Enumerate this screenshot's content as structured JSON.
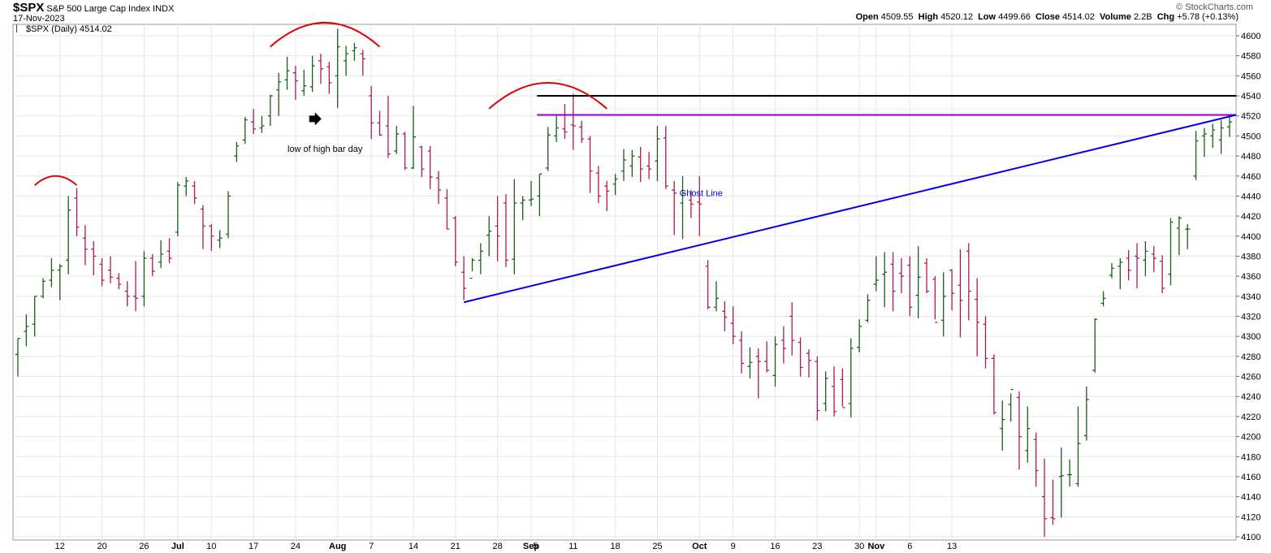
{
  "header": {
    "symbol": "$SPX",
    "name": "S&P 500 Large Cap Index",
    "exchange": "INDX",
    "date": "17-Nov-2023",
    "credit": "© StockCharts.com",
    "legend": "$SPX (Daily) 4514.02",
    "open_label": "Open",
    "open": "4509.55",
    "high_label": "High",
    "high": "4520.12",
    "low_label": "Low",
    "low": "4499.66",
    "close_label": "Close",
    "close": "4514.02",
    "volume_label": "Volume",
    "volume": "2.2B",
    "chg_label": "Chg",
    "chg": "+5.78 (+0.13%)"
  },
  "colors": {
    "up": "#1a5e1a",
    "down": "#b01a4a",
    "trend": "#0000ee",
    "arc": "#e00000",
    "black_line": "#000000",
    "purple_line": "#9900cc",
    "grid": "#e6e6e6"
  },
  "chart_data": {
    "type": "ohlc",
    "title": "$SPX (Daily) 4514.02",
    "ylim": [
      4095,
      4610
    ],
    "yticks": [
      4100,
      4120,
      4140,
      4160,
      4180,
      4200,
      4220,
      4240,
      4260,
      4280,
      4300,
      4320,
      4340,
      4360,
      4380,
      4400,
      4420,
      4440,
      4460,
      4480,
      4500,
      4520,
      4540,
      4560,
      4580,
      4600
    ],
    "x_tick_labels": [
      {
        "i": 5,
        "label": "12"
      },
      {
        "i": 10,
        "label": "20"
      },
      {
        "i": 15,
        "label": "26"
      },
      {
        "i": 19,
        "label": "Jul"
      },
      {
        "i": 23,
        "label": "10"
      },
      {
        "i": 28,
        "label": "17"
      },
      {
        "i": 33,
        "label": "24"
      },
      {
        "i": 38,
        "label": "Aug"
      },
      {
        "i": 42,
        "label": "7"
      },
      {
        "i": 47,
        "label": "14"
      },
      {
        "i": 52,
        "label": "21"
      },
      {
        "i": 57,
        "label": "28"
      },
      {
        "i": 61,
        "label": "Sep"
      },
      {
        "i": 61.5,
        "label": "5"
      },
      {
        "i": 66,
        "label": "11"
      },
      {
        "i": 71,
        "label": "18"
      },
      {
        "i": 76,
        "label": "25"
      },
      {
        "i": 81,
        "label": "Oct"
      },
      {
        "i": 85,
        "label": "9"
      },
      {
        "i": 90,
        "label": "16"
      },
      {
        "i": 95,
        "label": "23"
      },
      {
        "i": 100,
        "label": "30"
      },
      {
        "i": 102,
        "label": "Nov"
      },
      {
        "i": 106,
        "label": "6"
      },
      {
        "i": 111,
        "label": "13"
      }
    ],
    "bars": [
      [
        4282,
        4298,
        4260,
        4298
      ],
      [
        4305,
        4322,
        4290,
        4310
      ],
      [
        4312,
        4340,
        4300,
        4340
      ],
      [
        4340,
        4358,
        4338,
        4355
      ],
      [
        4356,
        4378,
        4349,
        4366
      ],
      [
        4366,
        4372,
        4336,
        4370
      ],
      [
        4376,
        4440,
        4362,
        4426
      ],
      [
        4438,
        4448,
        4400,
        4409
      ],
      [
        4398,
        4411,
        4371,
        4387
      ],
      [
        4387,
        4395,
        4361,
        4380
      ],
      [
        4372,
        4378,
        4350,
        4356
      ],
      [
        4366,
        4380,
        4353,
        4359
      ],
      [
        4358,
        4363,
        4347,
        4352
      ],
      [
        4345,
        4355,
        4330,
        4340
      ],
      [
        4340,
        4375,
        4325,
        4338
      ],
      [
        4340,
        4385,
        4330,
        4378
      ],
      [
        4378,
        4382,
        4360,
        4365
      ],
      [
        4374,
        4396,
        4368,
        4382
      ],
      [
        4385,
        4398,
        4373,
        4378
      ],
      [
        4404,
        4454,
        4400,
        4451
      ],
      [
        4450,
        4459,
        4440,
        4455
      ],
      [
        4450,
        4455,
        4432,
        4438
      ],
      [
        4427,
        4431,
        4387,
        4410
      ],
      [
        4410,
        4412,
        4385,
        4400
      ],
      [
        4396,
        4406,
        4388,
        4398
      ],
      [
        4402,
        4445,
        4398,
        4440
      ],
      [
        4480,
        4494,
        4474,
        4490
      ],
      [
        4496,
        4519,
        4492,
        4516
      ],
      [
        4514,
        4527,
        4502,
        4507
      ],
      [
        4508,
        4520,
        4503,
        4510
      ],
      [
        4520,
        4541,
        4510,
        4540
      ],
      [
        4546,
        4563,
        4520,
        4554
      ],
      [
        4556,
        4579,
        4546,
        4565
      ],
      [
        4563,
        4570,
        4536,
        4555
      ],
      [
        4545,
        4566,
        4540,
        4550
      ],
      [
        4549,
        4580,
        4544,
        4570
      ],
      [
        4575,
        4582,
        4552,
        4567
      ],
      [
        4569,
        4574,
        4542,
        4553
      ],
      [
        4560,
        4607,
        4528,
        4589
      ],
      [
        4575,
        4590,
        4560,
        4582
      ],
      [
        4585,
        4593,
        4575,
        4588
      ],
      [
        4582,
        4586,
        4560,
        4577
      ],
      [
        4540,
        4550,
        4497,
        4513
      ],
      [
        4513,
        4525,
        4500,
        4501
      ],
      [
        4510,
        4540,
        4478,
        4482
      ],
      [
        4485,
        4510,
        4482,
        4502
      ],
      [
        4502,
        4504,
        4466,
        4468
      ],
      [
        4468,
        4530,
        4467,
        4499
      ],
      [
        4489,
        4490,
        4459,
        4467
      ],
      [
        4485,
        4490,
        4447,
        4459
      ],
      [
        4458,
        4465,
        4432,
        4446
      ],
      [
        4438,
        4447,
        4407,
        4407
      ],
      [
        4418,
        4420,
        4370,
        4374
      ],
      [
        4364,
        4380,
        4336,
        4348
      ],
      [
        4358,
        4378,
        4365,
        4376
      ],
      [
        4376,
        4393,
        4362,
        4385
      ],
      [
        4401,
        4420,
        4380,
        4405
      ],
      [
        4410,
        4440,
        4375,
        4400
      ],
      [
        4433,
        4442,
        4369,
        4376
      ],
      [
        4377,
        4457,
        4362,
        4433
      ],
      [
        4433,
        4440,
        4416,
        4436
      ],
      [
        4436,
        4455,
        4430,
        4437
      ],
      [
        4440,
        4462,
        4420,
        4462
      ],
      [
        4468,
        4509,
        4465,
        4501
      ],
      [
        4500,
        4520,
        4494,
        4508
      ],
      [
        4507,
        4532,
        4497,
        4504
      ],
      [
        4511,
        4542,
        4486,
        4510
      ],
      [
        4509,
        4515,
        4493,
        4497
      ],
      [
        4497,
        4500,
        4443,
        4465
      ],
      [
        4463,
        4470,
        4433,
        4440
      ],
      [
        4450,
        4455,
        4425,
        4445
      ],
      [
        4452,
        4462,
        4441,
        4457
      ],
      [
        4465,
        4487,
        4455,
        4476
      ],
      [
        4470,
        4486,
        4459,
        4480
      ],
      [
        4479,
        4489,
        4454,
        4467
      ],
      [
        4470,
        4484,
        4457,
        4467
      ],
      [
        4475,
        4510,
        4455,
        4497
      ],
      [
        4498,
        4510,
        4447,
        4450
      ],
      [
        4446,
        4455,
        4401,
        4443
      ],
      [
        4433,
        4460,
        4397,
        4443
      ],
      [
        4436,
        4446,
        4418,
        4432
      ],
      [
        4434,
        4460,
        4400,
        4432
      ],
      [
        4370,
        4376,
        4327,
        4329
      ],
      [
        4329,
        4355,
        4325,
        4338
      ],
      [
        4325,
        4335,
        4305,
        4319
      ],
      [
        4313,
        4330,
        4292,
        4300
      ],
      [
        4296,
        4305,
        4263,
        4273
      ],
      [
        4270,
        4289,
        4258,
        4274
      ],
      [
        4280,
        4288,
        4238,
        4275
      ],
      [
        4275,
        4295,
        4264,
        4266
      ],
      [
        4261,
        4300,
        4250,
        4292
      ],
      [
        4296,
        4310,
        4273,
        4288
      ],
      [
        4320,
        4334,
        4281,
        4296
      ],
      [
        4294,
        4299,
        4260,
        4269
      ],
      [
        4283,
        4287,
        4259,
        4276
      ],
      [
        4275,
        4280,
        4216,
        4226
      ],
      [
        4233,
        4265,
        4225,
        4258
      ],
      [
        4250,
        4270,
        4220,
        4225
      ],
      [
        4257,
        4268,
        4230,
        4229
      ],
      [
        4233,
        4298,
        4219,
        4288
      ],
      [
        4289,
        4317,
        4284,
        4310
      ],
      [
        4316,
        4342,
        4314,
        4336
      ],
      [
        4352,
        4380,
        4345,
        4356
      ],
      [
        4362,
        4384,
        4329,
        4364
      ],
      [
        4372,
        4384,
        4325,
        4345
      ],
      [
        4363,
        4378,
        4343,
        4360
      ],
      [
        4371,
        4380,
        4320,
        4329
      ],
      [
        4341,
        4390,
        4318,
        4359
      ],
      [
        4373,
        4378,
        4343,
        4345
      ],
      [
        4357,
        4360,
        4317,
        4314
      ],
      [
        4316,
        4364,
        4300,
        4340
      ],
      [
        4366,
        4367,
        4326,
        4343
      ],
      [
        4351,
        4387,
        4299,
        4336
      ],
      [
        4385,
        4393,
        4316,
        4345
      ],
      [
        4337,
        4358,
        4280,
        4314
      ],
      [
        4312,
        4320,
        4268,
        4278
      ],
      [
        4278,
        4282,
        4222,
        4224
      ],
      [
        4208,
        4236,
        4186,
        4217
      ],
      [
        4232,
        4243,
        4215,
        4247
      ],
      [
        4239,
        4245,
        4167,
        4200
      ],
      [
        4186,
        4230,
        4174,
        4208
      ],
      [
        4197,
        4204,
        4150,
        4166
      ],
      [
        4140,
        4178,
        4100,
        4118
      ],
      [
        4119,
        4157,
        4112,
        4118
      ],
      [
        4160,
        4189,
        4119,
        4161
      ],
      [
        4162,
        4177,
        4150,
        4162
      ],
      [
        4153,
        4230,
        4150,
        4193
      ],
      [
        4201,
        4250,
        4196,
        4237
      ],
      [
        4266,
        4318,
        4264,
        4317
      ],
      [
        4333,
        4345,
        4330,
        4338
      ],
      [
        4361,
        4373,
        4358,
        4368
      ],
      [
        4370,
        4378,
        4347,
        4374
      ],
      [
        4378,
        4386,
        4356,
        4366
      ],
      [
        4380,
        4393,
        4348,
        4378
      ],
      [
        4376,
        4395,
        4360,
        4385
      ],
      [
        4382,
        4390,
        4364,
        4378
      ],
      [
        4375,
        4381,
        4343,
        4348
      ],
      [
        4362,
        4418,
        4351,
        4414
      ],
      [
        4408,
        4420,
        4381,
        4418
      ]
    ],
    "bars_tail": [
      [
        4407,
        4412,
        4387,
        4407
      ],
      [
        4460,
        4505,
        4456,
        4495
      ],
      [
        4500,
        4508,
        4479,
        4502
      ],
      [
        4500,
        4512,
        4488,
        4506
      ],
      [
        4496,
        4516,
        4482,
        4508
      ],
      [
        4509,
        4520,
        4499,
        4514
      ]
    ],
    "annotations": {
      "ghost_line_label": "Ghost Line",
      "low_of_high_bar_label": "low of high bar day",
      "ghost_line": [
        [
          53,
          4334
        ],
        [
          120,
          4521
        ]
      ],
      "black_level": 4540,
      "purple_level": 4521,
      "arcs": [
        {
          "from": 2,
          "to": 7,
          "peak": 4460
        },
        {
          "from": 30,
          "to": 43,
          "peak": 4613
        },
        {
          "from": 56,
          "to": 70,
          "peak": 4553
        }
      ]
    }
  }
}
